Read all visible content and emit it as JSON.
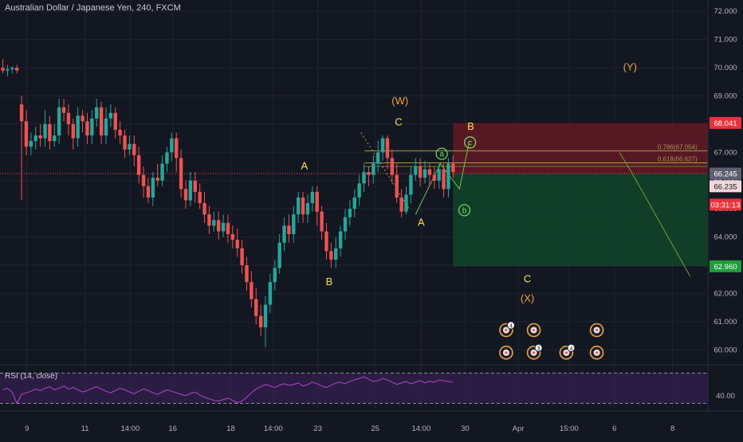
{
  "header": {
    "title": "Australian Dollar / Japanese Yen, 240, FXCM"
  },
  "colors": {
    "background": "#131722",
    "grid": "#1f2430",
    "up": "#26a69a",
    "down": "#ef5350",
    "wave_orange": "#f2a33a",
    "wave_yellow": "#f5e14b",
    "wave_green": "#7ddf64",
    "rsi": "#b046c9",
    "rsi_band": "#3a1f5a",
    "stop_zone": "#5e1a25",
    "target_zone": "#10402a"
  },
  "chart_data": {
    "type": "candlestick",
    "title": "Australian Dollar / Japanese Yen, 240, FXCM",
    "ylim": [
      59.5,
      72.4
    ],
    "yticks": [
      60,
      61,
      62,
      63,
      64,
      65,
      66,
      67,
      68,
      69,
      70,
      71,
      72
    ],
    "ytick_labels": [
      "60.000",
      "61.000",
      "62.000",
      "63.000",
      "64.000",
      "65.000",
      "66.000",
      "67.000",
      "68.000",
      "69.000",
      "70.000",
      "71.000",
      "72.000"
    ],
    "xlim": [
      0,
      100
    ],
    "xticks": [
      {
        "label": "9",
        "x": 3.8
      },
      {
        "label": "11",
        "x": 12.0
      },
      {
        "label": "14:00",
        "x": 18.4
      },
      {
        "label": "16",
        "x": 24.4
      },
      {
        "label": "18",
        "x": 32.6
      },
      {
        "label": "14:00",
        "x": 38.6
      },
      {
        "label": "23",
        "x": 44.9
      },
      {
        "label": "25",
        "x": 53.0
      },
      {
        "label": "14:00",
        "x": 59.5
      },
      {
        "label": "30",
        "x": 65.7
      },
      {
        "label": "Apr",
        "x": 73.2
      },
      {
        "label": "15:00",
        "x": 80.4
      },
      {
        "label": "6",
        "x": 86.8
      },
      {
        "label": "8",
        "x": 95.0
      }
    ],
    "candles": [
      [
        70.0,
        69.9,
        70.3,
        69.8
      ],
      [
        69.9,
        69.95,
        70.1,
        69.7
      ],
      [
        69.95,
        70.0,
        70.05,
        69.8
      ],
      [
        70.0,
        69.9,
        70.1,
        69.8
      ],
      [
        68.7,
        68.1,
        69.0,
        65.3
      ],
      [
        68.1,
        67.2,
        68.5,
        66.9
      ],
      [
        67.2,
        67.4,
        67.7,
        66.9
      ],
      [
        67.4,
        67.6,
        67.9,
        67.1
      ],
      [
        67.6,
        67.5,
        68.0,
        67.2
      ],
      [
        67.5,
        68.0,
        68.5,
        67.2
      ],
      [
        68.0,
        67.4,
        68.3,
        67.1
      ],
      [
        67.4,
        67.6,
        68.0,
        67.2
      ],
      [
        67.6,
        68.6,
        68.9,
        67.3
      ],
      [
        68.6,
        68.4,
        68.9,
        68.1
      ],
      [
        68.4,
        68.0,
        68.7,
        67.6
      ],
      [
        68.0,
        67.5,
        68.2,
        67.1
      ],
      [
        67.5,
        68.3,
        68.6,
        67.2
      ],
      [
        68.3,
        68.1,
        68.5,
        67.7
      ],
      [
        68.1,
        67.6,
        68.4,
        67.3
      ],
      [
        67.6,
        68.2,
        68.5,
        67.3
      ],
      [
        68.2,
        68.6,
        68.9,
        67.9
      ],
      [
        68.6,
        67.6,
        68.8,
        67.3
      ],
      [
        67.6,
        68.2,
        68.6,
        67.3
      ],
      [
        68.2,
        68.4,
        68.7,
        67.9
      ],
      [
        68.4,
        67.8,
        68.6,
        67.5
      ],
      [
        67.8,
        67.6,
        68.1,
        67.3
      ],
      [
        67.6,
        67.1,
        67.8,
        66.8
      ],
      [
        67.1,
        67.3,
        67.6,
        66.9
      ],
      [
        67.3,
        66.9,
        67.6,
        66.5
      ],
      [
        66.9,
        66.2,
        67.2,
        65.9
      ],
      [
        66.2,
        65.8,
        66.5,
        65.4
      ],
      [
        65.8,
        65.4,
        66.1,
        65.2
      ],
      [
        65.4,
        66.1,
        66.3,
        65.1
      ],
      [
        66.1,
        66.0,
        66.6,
        65.8
      ],
      [
        66.0,
        66.6,
        66.9,
        65.8
      ],
      [
        66.6,
        67.0,
        67.2,
        66.3
      ],
      [
        67.0,
        67.5,
        67.7,
        66.7
      ],
      [
        67.5,
        66.8,
        67.7,
        66.3
      ],
      [
        66.8,
        65.7,
        67.1,
        65.4
      ],
      [
        65.7,
        65.3,
        66.0,
        65.0
      ],
      [
        65.3,
        66.0,
        66.3,
        65.1
      ],
      [
        66.0,
        65.6,
        66.3,
        65.2
      ],
      [
        65.6,
        65.2,
        65.9,
        65.0
      ],
      [
        65.2,
        64.8,
        65.6,
        64.5
      ],
      [
        64.8,
        64.4,
        65.1,
        64.1
      ],
      [
        64.4,
        64.6,
        64.9,
        64.2
      ],
      [
        64.6,
        64.2,
        64.9,
        63.9
      ],
      [
        64.2,
        64.5,
        64.8,
        64.0
      ],
      [
        64.5,
        64.1,
        64.8,
        63.8
      ],
      [
        64.1,
        63.9,
        64.4,
        63.6
      ],
      [
        63.9,
        63.6,
        64.3,
        63.3
      ],
      [
        63.6,
        63.0,
        63.9,
        62.7
      ],
      [
        63.0,
        62.4,
        63.3,
        62.1
      ],
      [
        62.4,
        61.8,
        62.8,
        61.5
      ],
      [
        61.8,
        61.2,
        62.2,
        60.9
      ],
      [
        61.2,
        60.8,
        61.6,
        60.5
      ],
      [
        60.8,
        61.6,
        61.9,
        60.1
      ],
      [
        61.6,
        62.4,
        62.7,
        61.3
      ],
      [
        62.4,
        62.9,
        63.2,
        62.1
      ],
      [
        62.9,
        63.8,
        64.1,
        62.7
      ],
      [
        63.8,
        64.4,
        64.7,
        63.5
      ],
      [
        64.4,
        64.1,
        64.8,
        63.8
      ],
      [
        64.1,
        64.8,
        65.1,
        63.8
      ],
      [
        64.8,
        65.4,
        65.6,
        64.5
      ],
      [
        65.4,
        64.8,
        65.6,
        64.5
      ],
      [
        64.8,
        65.2,
        65.5,
        64.5
      ],
      [
        65.2,
        65.6,
        65.8,
        64.9
      ],
      [
        65.6,
        64.9,
        65.8,
        64.4
      ],
      [
        64.9,
        64.2,
        65.1,
        63.9
      ],
      [
        64.2,
        63.5,
        64.5,
        63.2
      ],
      [
        63.5,
        63.2,
        63.8,
        62.9
      ],
      [
        63.2,
        63.6,
        64.0,
        62.9
      ],
      [
        63.6,
        64.2,
        64.4,
        63.3
      ],
      [
        64.2,
        64.7,
        65.0,
        63.9
      ],
      [
        64.7,
        65.0,
        65.3,
        64.4
      ],
      [
        65.0,
        65.4,
        65.7,
        64.7
      ],
      [
        65.4,
        65.9,
        66.2,
        65.1
      ],
      [
        65.9,
        66.3,
        66.6,
        65.6
      ],
      [
        66.3,
        66.2,
        66.5,
        65.8
      ],
      [
        66.2,
        66.6,
        66.9,
        65.9
      ],
      [
        66.6,
        67.0,
        67.4,
        66.3
      ],
      [
        67.0,
        67.5,
        67.6,
        66.7
      ],
      [
        67.5,
        66.8,
        67.6,
        66.4
      ],
      [
        66.8,
        66.2,
        67.1,
        65.9
      ],
      [
        66.2,
        65.4,
        66.6,
        65.2
      ],
      [
        65.4,
        64.9,
        65.7,
        64.7
      ],
      [
        64.9,
        65.5,
        65.8,
        64.8
      ],
      [
        65.5,
        66.2,
        66.5,
        65.2
      ],
      [
        66.2,
        66.5,
        66.8,
        66.0
      ],
      [
        66.5,
        66.1,
        66.8,
        65.8
      ],
      [
        66.1,
        66.4,
        66.7,
        65.9
      ],
      [
        66.4,
        66.2,
        66.6,
        65.8
      ],
      [
        66.2,
        66.0,
        66.5,
        65.7
      ],
      [
        66.0,
        66.4,
        66.6,
        65.7
      ],
      [
        66.4,
        65.7,
        66.6,
        65.4
      ],
      [
        65.7,
        66.6,
        66.8,
        65.4
      ],
      [
        66.6,
        66.3,
        66.9,
        66.1
      ]
    ],
    "current_price_line": 66.245,
    "fib_levels": [
      {
        "label": "0.786(67.054)",
        "value": 67.054
      },
      {
        "label": "0.618(66.627)",
        "value": 66.627
      }
    ],
    "position": {
      "entry": 66.245,
      "stop": 68.041,
      "target": 62.96
    },
    "projection": [
      [
        87.5,
        67.0
      ],
      [
        89.2,
        66.3
      ],
      [
        97.5,
        62.6
      ]
    ],
    "wave_labels": [
      {
        "text": "A",
        "x": 43.0,
        "y": 66.4,
        "color": "yellow"
      },
      {
        "text": "B",
        "x": 46.5,
        "y": 62.3,
        "color": "yellow"
      },
      {
        "text": "(W)",
        "x": 56.5,
        "y": 68.7,
        "color": "orange"
      },
      {
        "text": "C",
        "x": 56.3,
        "y": 67.95,
        "color": "yellow"
      },
      {
        "text": "A",
        "x": 59.5,
        "y": 64.4,
        "color": "yellow"
      },
      {
        "text": "B",
        "x": 66.5,
        "y": 67.8,
        "color": "yellow"
      },
      {
        "text": "C",
        "x": 74.5,
        "y": 62.4,
        "color": "yellow"
      },
      {
        "text": "(X)",
        "x": 74.5,
        "y": 61.7,
        "color": "orange"
      },
      {
        "text": "(Y)",
        "x": 89.0,
        "y": 69.9,
        "color": "orange"
      }
    ],
    "circled_labels": [
      {
        "text": "a",
        "x": 62.4,
        "y": 66.95
      },
      {
        "text": "c",
        "x": 66.4,
        "y": 67.35
      },
      {
        "text": "b",
        "x": 65.6,
        "y": 64.95
      }
    ],
    "wave_path": [
      [
        58.7,
        64.8
      ],
      [
        62.2,
        66.6
      ],
      [
        64.9,
        65.7
      ],
      [
        66.3,
        67.4
      ]
    ],
    "dotted_channel": [
      [
        51.0,
        67.7
      ],
      [
        57.8,
        65.0
      ]
    ],
    "event_badges": [
      {
        "x": 71.5,
        "y": 60.7,
        "count": "4"
      },
      {
        "x": 75.4,
        "y": 60.7,
        "count": ""
      },
      {
        "x": 84.3,
        "y": 60.7,
        "count": ""
      },
      {
        "x": 71.5,
        "y": 59.9,
        "count": ""
      },
      {
        "x": 75.4,
        "y": 59.9,
        "count": "3"
      },
      {
        "x": 80.0,
        "y": 59.9,
        "count": "4"
      },
      {
        "x": 84.3,
        "y": 59.9,
        "count": ""
      }
    ]
  },
  "price_labels": {
    "current": "66.245",
    "stop": "68.041",
    "previous": "66.235",
    "countdown": "03:31:13",
    "target": "62.960"
  },
  "rsi": {
    "label": "RSI (14, close)",
    "ylim": [
      20,
      80
    ],
    "upper_band": 70,
    "lower_band": 30,
    "tick_label": "40.00",
    "tick_value": 40,
    "values": [
      48,
      50,
      45,
      30,
      42,
      44,
      46,
      49,
      47,
      50,
      52,
      48,
      50,
      53,
      49,
      51,
      48,
      45,
      47,
      50,
      52,
      49,
      46,
      44,
      47,
      50,
      48,
      45,
      43,
      46,
      49,
      47,
      44,
      42,
      45,
      48,
      46,
      44,
      42,
      40,
      43,
      45,
      41,
      38,
      36,
      34,
      33,
      35,
      37,
      34,
      31,
      33,
      38,
      44,
      49,
      52,
      55,
      53,
      51,
      54,
      56,
      54,
      55,
      57,
      53,
      55,
      58,
      56,
      53,
      51,
      54,
      57,
      58,
      56,
      59,
      61,
      63,
      65,
      62,
      59,
      60,
      63,
      61,
      58,
      55,
      57,
      59,
      56,
      58,
      60,
      57,
      59,
      58,
      61,
      60,
      59,
      58
    ]
  }
}
